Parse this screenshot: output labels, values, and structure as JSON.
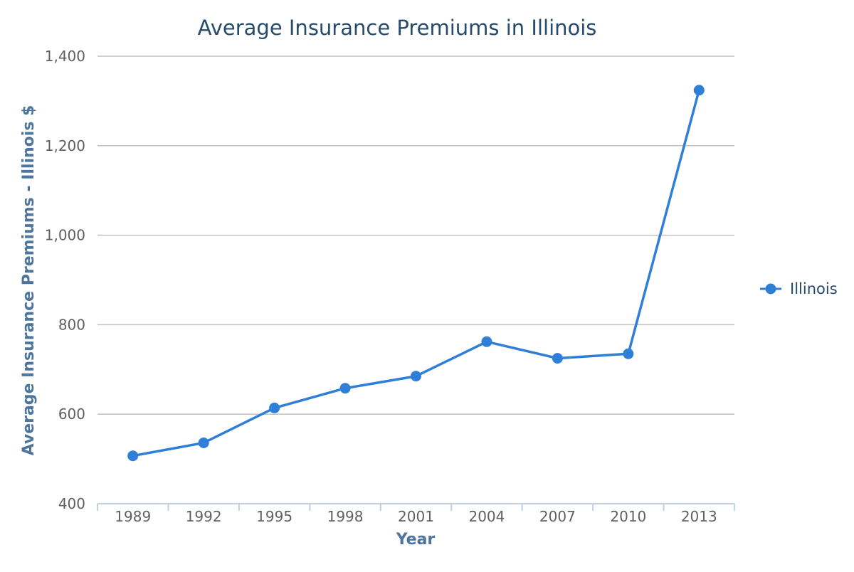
{
  "chart_data": {
    "type": "line",
    "title": "Average Insurance Premiums in Illinois",
    "xlabel": "Year",
    "ylabel": "Average Insurance Premiums - Illinois $",
    "ylim": [
      400,
      1400
    ],
    "yticks": [
      400,
      600,
      800,
      1000,
      1200,
      1400
    ],
    "ytick_labels": [
      "400",
      "600",
      "800",
      "1,000",
      "1,200",
      "1,400"
    ],
    "categories": [
      "1989",
      "1992",
      "1995",
      "1998",
      "2001",
      "2004",
      "2007",
      "2010",
      "2013"
    ],
    "series": [
      {
        "name": "Illinois",
        "color": "#2f7ed8",
        "values": [
          507,
          536,
          614,
          658,
          685,
          762,
          725,
          735,
          1324
        ]
      }
    ],
    "grid": true,
    "legend": "right"
  }
}
